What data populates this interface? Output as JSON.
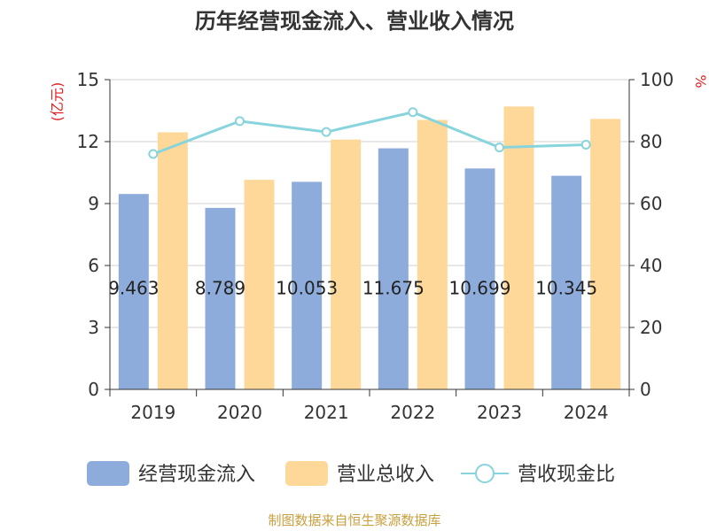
{
  "chart_data": {
    "type": "bar",
    "title": "历年经营现金流入、营业收入情况",
    "categories": [
      "2019",
      "2020",
      "2021",
      "2022",
      "2023",
      "2024"
    ],
    "series": [
      {
        "name": "经营现金流入",
        "kind": "bar",
        "axis": "left",
        "color": "#8eacdb",
        "values": [
          9.463,
          8.789,
          10.053,
          11.675,
          10.699,
          10.345
        ],
        "labels": [
          "9.463",
          "8.789",
          "10.053",
          "11.675",
          "10.699",
          "10.345"
        ]
      },
      {
        "name": "营业总收入",
        "kind": "bar",
        "axis": "left",
        "color": "#fdd899",
        "values": [
          12.45,
          10.15,
          12.1,
          13.05,
          13.7,
          13.1
        ]
      },
      {
        "name": "营收现金比",
        "kind": "line",
        "axis": "right",
        "color": "#88d4dc",
        "values": [
          76.0,
          86.6,
          83.1,
          89.5,
          78.1,
          79.0
        ]
      }
    ],
    "left_axis": {
      "label": "(亿元)",
      "ylim": [
        0,
        15
      ],
      "ticks": [
        0,
        3,
        6,
        9,
        12,
        15
      ]
    },
    "right_axis": {
      "label": "%",
      "ylim": [
        0,
        100
      ],
      "ticks": [
        0,
        20,
        40,
        60,
        80,
        100
      ]
    },
    "grid": true,
    "legend_position": "bottom"
  },
  "footer": "制图数据来自恒生聚源数据库"
}
